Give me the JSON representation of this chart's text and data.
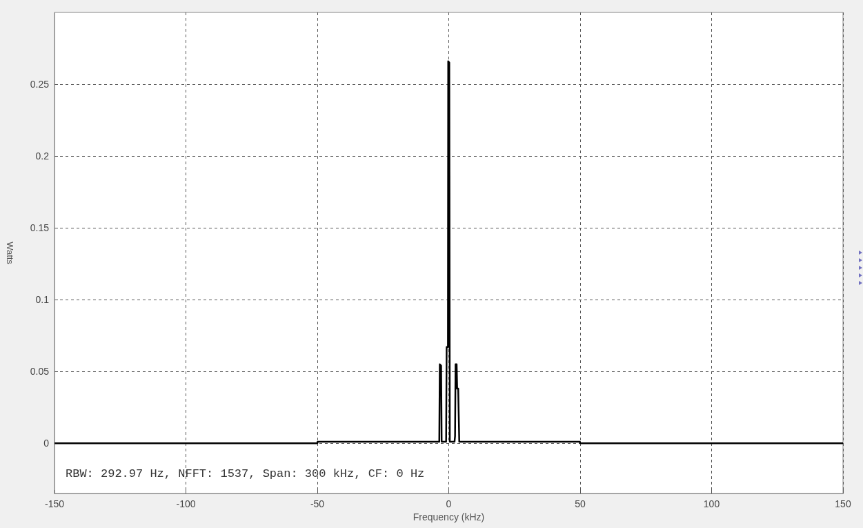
{
  "chart_data": {
    "type": "line",
    "xlabel": "Frequency (kHz)",
    "ylabel": "Watts",
    "annotations": [
      "RBW: 292.97 Hz, NFFT: 1537, Span: 300 kHz, CF: 0 Hz"
    ],
    "x": [
      -150,
      -50,
      -49.9,
      -3.6,
      -3.4,
      -2.9,
      -2.7,
      -1.0,
      -0.8,
      -0.3,
      -0.2,
      0.2,
      0.4,
      2.2,
      2.4,
      2.6,
      3.0,
      3.2,
      3.6,
      3.8,
      4.0,
      49.9,
      50,
      150
    ],
    "series": [
      {
        "color": "#000000",
        "values": [
          0,
          0,
          0.001,
          0.001,
          0.055,
          0.054,
          0.001,
          0.001,
          0.067,
          0.067,
          0.266,
          0.265,
          0.001,
          0.001,
          0.005,
          0.055,
          0.055,
          0.038,
          0.038,
          0.019,
          0.001,
          0.001,
          0,
          0
        ]
      }
    ],
    "xlim": [
      -150,
      150
    ],
    "xticks": [
      -150,
      -100,
      -50,
      0,
      50,
      100,
      150
    ],
    "ylim": [
      -0.035,
      0.3
    ],
    "yticks": [
      0,
      0.05,
      0.1,
      0.15,
      0.2,
      0.25
    ],
    "grid": true,
    "marker": "none",
    "line_style": "solid"
  }
}
